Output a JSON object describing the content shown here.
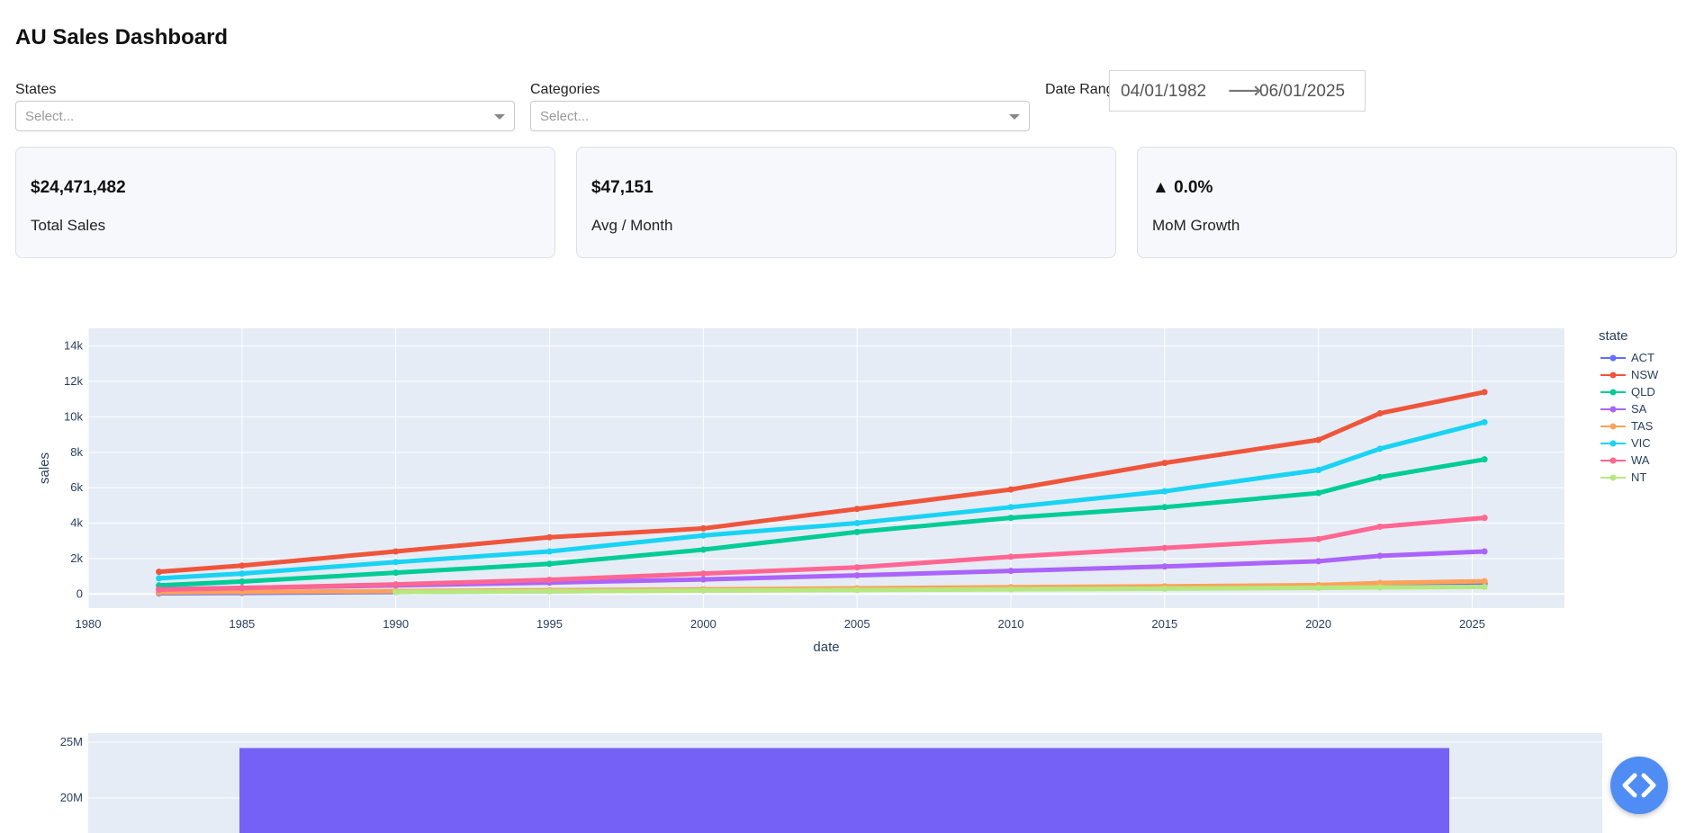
{
  "header": {
    "title": "AU Sales Dashboard"
  },
  "filters": {
    "states": {
      "label": "States",
      "placeholder": "Select..."
    },
    "categories": {
      "label": "Categories",
      "placeholder": "Select..."
    },
    "date_range": {
      "label": "Date Range",
      "start": "04/01/1982",
      "end": "06/01/2025",
      "separator": "⟶"
    }
  },
  "kpis": [
    {
      "value": "$24,471,482",
      "label": "Total Sales"
    },
    {
      "value": "$47,151",
      "label": "Avg / Month"
    },
    {
      "value": "▲ 0.0%",
      "label": "MoM Growth"
    }
  ],
  "chart_data": [
    {
      "type": "line",
      "xlabel": "date",
      "ylabel": "sales",
      "xlim": [
        1980,
        2028
      ],
      "ylim": [
        -800,
        15000
      ],
      "x_ticks": [
        1980,
        1985,
        1990,
        1995,
        2000,
        2005,
        2010,
        2015,
        2020,
        2025
      ],
      "x_tick_labels": [
        "1980",
        "1985",
        "1990",
        "1995",
        "2000",
        "2005",
        "2010",
        "2015",
        "2020",
        "2025"
      ],
      "y_ticks": [
        0,
        2000,
        4000,
        6000,
        8000,
        10000,
        12000,
        14000
      ],
      "y_tick_labels": [
        "0",
        "2k",
        "4k",
        "6k",
        "8k",
        "10k",
        "12k",
        "14k"
      ],
      "legend_title": "state",
      "legend_position": "right",
      "x": [
        1982.3,
        1985,
        1990,
        1995,
        2000,
        2005,
        2010,
        2015,
        2020,
        2022,
        2025.4
      ],
      "series": [
        {
          "name": "ACT",
          "color": "#636efa",
          "values": [
            40,
            60,
            110,
            150,
            200,
            260,
            330,
            400,
            480,
            530,
            580
          ]
        },
        {
          "name": "NSW",
          "color": "#ef553b",
          "values": [
            1250,
            1600,
            2400,
            3200,
            3700,
            4800,
            5900,
            7400,
            8700,
            10200,
            11400
          ]
        },
        {
          "name": "QLD",
          "color": "#00cc96",
          "values": [
            480,
            700,
            1200,
            1700,
            2500,
            3500,
            4300,
            4900,
            5700,
            6600,
            7600
          ]
        },
        {
          "name": "SA",
          "color": "#ab63fa",
          "values": [
            260,
            340,
            480,
            640,
            820,
            1050,
            1300,
            1550,
            1850,
            2150,
            2400
          ]
        },
        {
          "name": "TAS",
          "color": "#ffa15a",
          "values": [
            80,
            110,
            160,
            210,
            260,
            320,
            380,
            430,
            500,
            620,
            720
          ]
        },
        {
          "name": "VIC",
          "color": "#19d3f3",
          "values": [
            880,
            1150,
            1800,
            2400,
            3300,
            4000,
            4900,
            5800,
            7000,
            8200,
            9700
          ]
        },
        {
          "name": "WA",
          "color": "#ff6692",
          "values": [
            240,
            330,
            540,
            800,
            1150,
            1500,
            2100,
            2600,
            3100,
            3800,
            4300
          ]
        },
        {
          "name": "NT",
          "color": "#b6e880",
          "values": [
            null,
            null,
            110,
            150,
            190,
            220,
            260,
            300,
            340,
            370,
            400
          ]
        }
      ]
    },
    {
      "type": "bar",
      "y_ticks": [
        20000000,
        25000000
      ],
      "y_tick_labels": [
        "20M",
        "25M"
      ],
      "ylim_visible_top": 25400000,
      "categories": [
        ""
      ],
      "values": [
        24471482
      ],
      "color": "#7561f5"
    }
  ],
  "fab": {
    "icon": "code-icon"
  }
}
